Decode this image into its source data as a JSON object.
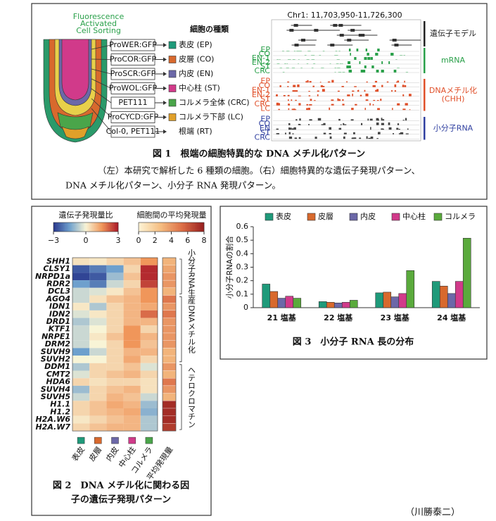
{
  "figure1": {
    "facs_label": [
      "Fluorescence",
      "Activated",
      "Cell Sorting"
    ],
    "cell_type_header": "細胞の種類",
    "markers": [
      {
        "marker": "ProWER:GFP",
        "cell": "表皮 (EP)",
        "color": "#1f9a7a"
      },
      {
        "marker": "ProCOR:GFP",
        "cell": "皮層 (CO)",
        "color": "#d8692d"
      },
      {
        "marker": "ProSCR:GFP",
        "cell": "内皮 (EN)",
        "color": "#6c68a8"
      },
      {
        "marker": "ProWOL:GFP",
        "cell": "中心柱 (ST)",
        "color": "#d13a8a"
      },
      {
        "marker": "PET111",
        "cell": "コルメラ全体 (CRC)",
        "color": "#4aa54a"
      },
      {
        "marker": "ProCYCD:GFP",
        "cell": "コルメラ下部 (LC)",
        "color": "#e0a02a"
      },
      {
        "marker": "Col-0, PET111",
        "cell": "根端 (RT)"
      }
    ],
    "browser": {
      "locus": "Chr1: 11,703,950-11,726,300",
      "sections": [
        {
          "label": [
            "遺伝子モデル"
          ],
          "color": "#222222",
          "tracks": []
        },
        {
          "label": [
            "mRNA"
          ],
          "color": "#2aa04a",
          "tracks": [
            "EP",
            "CO",
            "EN-1",
            "EN-2",
            "ST",
            "CRC"
          ]
        },
        {
          "label": [
            "DNAメチル化",
            "(CHH)"
          ],
          "color": "#e0502a",
          "tracks": [
            "EP",
            "CO",
            "EN-1",
            "EN-2",
            "ST",
            "CRC",
            "LC"
          ]
        },
        {
          "label": [
            "小分子RNA"
          ],
          "color": "#3040a0",
          "tracks": [
            "EP",
            "CO",
            "EN",
            "ST",
            "CRC"
          ]
        }
      ]
    },
    "caption": {
      "title": "図 1　根端の細胞特異的な DNA メチル化パターン",
      "text": [
        "（左）本研究で解析した 6 種類の細胞。（右）細胞特異的な遺伝子発現パターン、",
        "DNA メチル化パターン、小分子 RNA 発現パターン。"
      ]
    }
  },
  "figure2": {
    "colorbar_ratio": {
      "title": "遺伝子発現量比",
      "lim": [
        -3,
        3
      ],
      "ticks": [
        {
          "value": -3,
          "label": "−3"
        },
        0,
        3
      ]
    },
    "colorbar_mean": {
      "title": "細胞間の平均発現量",
      "lim": [
        0,
        8
      ],
      "ticks": [
        0,
        2,
        4,
        6,
        8
      ]
    },
    "columns": [
      {
        "label": "表皮",
        "color": "#1f9a7a"
      },
      {
        "label": "皮層",
        "color": "#d8692d"
      },
      {
        "label": "内皮",
        "color": "#6c68a8"
      },
      {
        "label": "中心柱",
        "color": "#d13a8a"
      },
      {
        "label": "コルメラ",
        "color": "#4aa54a"
      }
    ],
    "mean_column": "平均発現量",
    "groups": [
      {
        "label": "小分子RNA生産",
        "rows": [
          {
            "gene": "SHH1",
            "ratio": [
              0.3,
              0.2,
              0.5,
              0.8,
              1.5
            ],
            "mean": 3
          },
          {
            "gene": "CLSY1",
            "ratio": [
              -2.5,
              -2,
              -1.5,
              0.5,
              2.8
            ],
            "mean": 3.5
          },
          {
            "gene": "NRPD1a",
            "ratio": [
              -2.8,
              -2.5,
              -1,
              0.8,
              2.8
            ],
            "mean": 4
          },
          {
            "gene": "RDR2",
            "ratio": [
              -1.5,
              -2,
              -0.5,
              0.5,
              2.5
            ],
            "mean": 4
          },
          {
            "gene": "DCL3",
            "ratio": [
              -0.5,
              -0.3,
              0.2,
              0.8,
              1.5
            ],
            "mean": 3
          }
        ]
      },
      {
        "label": "DNAメチル化",
        "rows": [
          {
            "gene": "AGO4",
            "ratio": [
              -0.5,
              0.3,
              0.8,
              1,
              1.5
            ],
            "mean": 5
          },
          {
            "gene": "IDN1",
            "ratio": [
              0.2,
              -0.8,
              0.5,
              1,
              1.2
            ],
            "mean": 4
          },
          {
            "gene": "IDN2",
            "ratio": [
              -0.3,
              0.2,
              0.5,
              1,
              2
            ],
            "mean": 5
          },
          {
            "gene": "DRD1",
            "ratio": [
              -0.8,
              -0.3,
              0.5,
              1,
              1
            ],
            "mean": 4
          },
          {
            "gene": "KTF1",
            "ratio": [
              -0.5,
              0,
              0.5,
              1.5,
              0.5
            ],
            "mean": 4
          },
          {
            "gene": "NRPE1",
            "ratio": [
              -0.5,
              0.2,
              0.8,
              1.5,
              1
            ],
            "mean": 4
          },
          {
            "gene": "DRM2",
            "ratio": [
              -0.5,
              0,
              0.5,
              1.5,
              0.8
            ],
            "mean": 4
          },
          {
            "gene": "SUVH9",
            "ratio": [
              -1.5,
              -0.5,
              0.5,
              1,
              1
            ],
            "mean": 3
          },
          {
            "gene": "SUVH2",
            "ratio": [
              0,
              0,
              0.5,
              1.2,
              0.5
            ],
            "mean": 3
          }
        ]
      },
      {
        "label": "ヘテロクロマチン",
        "rows": [
          {
            "gene": "DDM1",
            "ratio": [
              -0.8,
              0.5,
              0.5,
              0.8,
              -0.3
            ],
            "mean": 4
          },
          {
            "gene": "CMT2",
            "ratio": [
              -0.3,
              0.5,
              0.8,
              1,
              0.5
            ],
            "mean": 3
          },
          {
            "gene": "HDA6",
            "ratio": [
              0.5,
              0.3,
              0.5,
              0.5,
              0.3
            ],
            "mean": 5
          },
          {
            "gene": "SUVH4",
            "ratio": [
              -1,
              0.5,
              0.8,
              1,
              0.3
            ],
            "mean": 4
          },
          {
            "gene": "SUVH5",
            "ratio": [
              -0.5,
              0.5,
              1,
              0.8,
              -0.5
            ],
            "mean": 3
          },
          {
            "gene": "H1.1",
            "ratio": [
              0.5,
              0.8,
              1.2,
              1,
              -1
            ],
            "mean": 7.5
          },
          {
            "gene": "H1.2",
            "ratio": [
              0.5,
              0.8,
              1,
              1.2,
              -1.2
            ],
            "mean": 7.5
          },
          {
            "gene": "H2A.W6",
            "ratio": [
              0.2,
              0.5,
              0.8,
              1,
              -0.8
            ],
            "mean": 7.5
          },
          {
            "gene": "H2A.W7",
            "ratio": [
              0.5,
              0.8,
              1,
              1,
              -0.8
            ],
            "mean": 7
          }
        ]
      }
    ],
    "caption": [
      "図 2　DNA メチル化に関わる因",
      "子の遺伝子発現パターン"
    ]
  },
  "chart_data": {
    "type": "bar",
    "title": "図 3　小分子 RNA 長の分布",
    "y_label": "小分子RNAの割合",
    "categories": [
      "21 塩基",
      "22 塩基",
      "23 塩基",
      "24 塩基"
    ],
    "series": [
      {
        "name": "表皮",
        "color": "#1f9a7a",
        "values": [
          0.175,
          0.045,
          0.11,
          0.195
        ]
      },
      {
        "name": "皮層",
        "color": "#d8692d",
        "values": [
          0.12,
          0.04,
          0.115,
          0.16
        ]
      },
      {
        "name": "内皮",
        "color": "#6c68a8",
        "values": [
          0.07,
          0.035,
          0.08,
          0.105
        ]
      },
      {
        "name": "中心柱",
        "color": "#d13a8a",
        "values": [
          0.085,
          0.04,
          0.105,
          0.195
        ]
      },
      {
        "name": "コルメラ",
        "color": "#5aaa3c",
        "values": [
          0.07,
          0.055,
          0.275,
          0.515
        ]
      }
    ],
    "ylim": [
      0,
      0.6
    ],
    "yticks": [
      0,
      0.1,
      0.2,
      0.3,
      0.4,
      0.5,
      0.6
    ],
    "legend": "top"
  },
  "author": "（川勝泰二）"
}
